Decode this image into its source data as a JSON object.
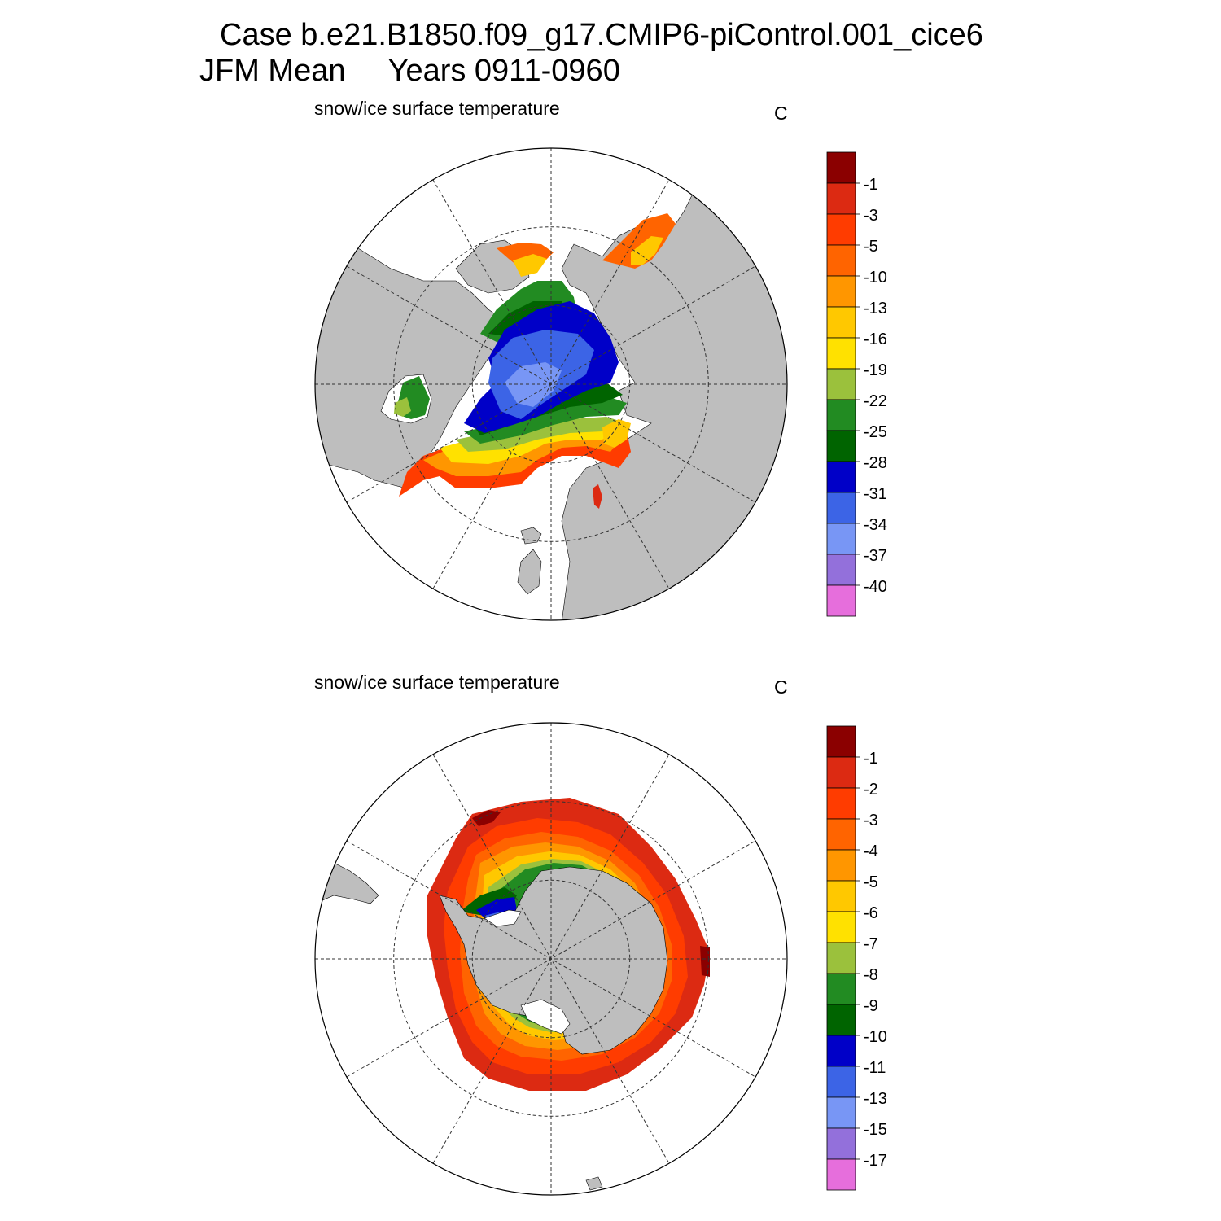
{
  "figure": {
    "title_line1": "Case b.e21.B1850.f09_g17.CMIP6-piControl.001_cice6",
    "title_line2": "JFM Mean     Years 0911-0960"
  },
  "colors": {
    "land": "#bebebe",
    "ocean": "#ffffff",
    "grid": "#333333",
    "palette": [
      "#8b0000",
      "#dc2a12",
      "#ff3c00",
      "#ff6400",
      "#ff9600",
      "#ffc800",
      "#ffe100",
      "#9bc13c",
      "#228b22",
      "#006400",
      "#0000c8",
      "#3c64e6",
      "#7896f5",
      "#9370db",
      "#e66edc"
    ]
  },
  "panels": [
    {
      "id": "north",
      "label": "snow/ice surface temperature",
      "unit": "C",
      "hemisphere": "Northern Hemisphere",
      "colorbar_labels": [
        "-1",
        "-3",
        "-5",
        "-10",
        "-13",
        "-16",
        "-19",
        "-22",
        "-25",
        "-28",
        "-31",
        "-34",
        "-37",
        "-40"
      ]
    },
    {
      "id": "south",
      "label": "snow/ice surface temperature",
      "unit": "C",
      "hemisphere": "Southern Hemisphere",
      "colorbar_labels": [
        "-1",
        "-2",
        "-3",
        "-4",
        "-5",
        "-6",
        "-7",
        "-8",
        "-9",
        "-10",
        "-11",
        "-13",
        "-15",
        "-17"
      ]
    }
  ]
}
